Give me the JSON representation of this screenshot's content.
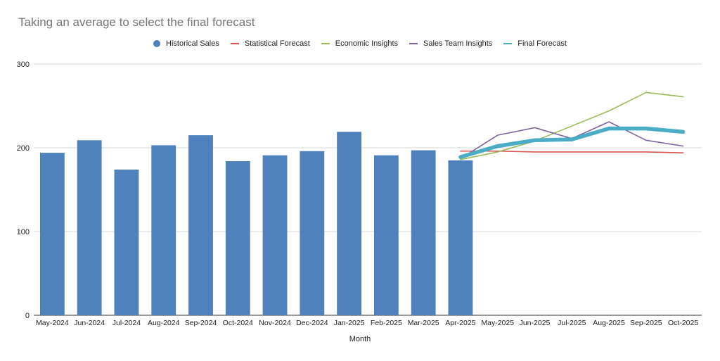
{
  "title": "Taking an average to select the final forecast",
  "chart_data": {
    "type": "bar",
    "title": "Taking an average to select the final forecast",
    "xlabel": "Month",
    "ylabel": "",
    "ylim": [
      0,
      300
    ],
    "yticks": [
      0,
      100,
      200,
      300
    ],
    "grid": true,
    "legend_position": "top",
    "categories": [
      "May-2024",
      "Jun-2024",
      "Jul-2024",
      "Aug-2024",
      "Sep-2024",
      "Oct-2024",
      "Nov-2024",
      "Dec-2024",
      "Jan-2025",
      "Feb-2025",
      "Mar-2025",
      "Apr-2025",
      "May-2025",
      "Jun-2025",
      "Jul-2025",
      "Aug-2025",
      "Sep-2025",
      "Oct-2025"
    ],
    "series": [
      {
        "name": "Historical Sales",
        "type": "bar",
        "color": "#4f81bd",
        "values": [
          194,
          209,
          174,
          203,
          215,
          184,
          191,
          196,
          219,
          191,
          197,
          185,
          null,
          null,
          null,
          null,
          null,
          null
        ]
      },
      {
        "name": "Statistical Forecast",
        "type": "line",
        "color": "#d9534f",
        "values": [
          null,
          null,
          null,
          null,
          null,
          null,
          null,
          null,
          null,
          null,
          null,
          196,
          196,
          195,
          195,
          195,
          195,
          194
        ]
      },
      {
        "name": "Economic Insights",
        "type": "line",
        "color": "#9bbb59",
        "values": [
          null,
          null,
          null,
          null,
          null,
          null,
          null,
          null,
          null,
          null,
          null,
          186,
          195,
          208,
          226,
          244,
          266,
          261
        ]
      },
      {
        "name": "Sales Team Insights",
        "type": "line",
        "color": "#8064a2",
        "values": [
          null,
          null,
          null,
          null,
          null,
          null,
          null,
          null,
          null,
          null,
          null,
          187,
          215,
          224,
          211,
          231,
          209,
          202
        ]
      },
      {
        "name": "Final Forecast",
        "type": "line",
        "color": "#4bacc6",
        "values": [
          null,
          null,
          null,
          null,
          null,
          null,
          null,
          null,
          null,
          null,
          null,
          189,
          202,
          209,
          210,
          223,
          223,
          219
        ]
      }
    ]
  }
}
